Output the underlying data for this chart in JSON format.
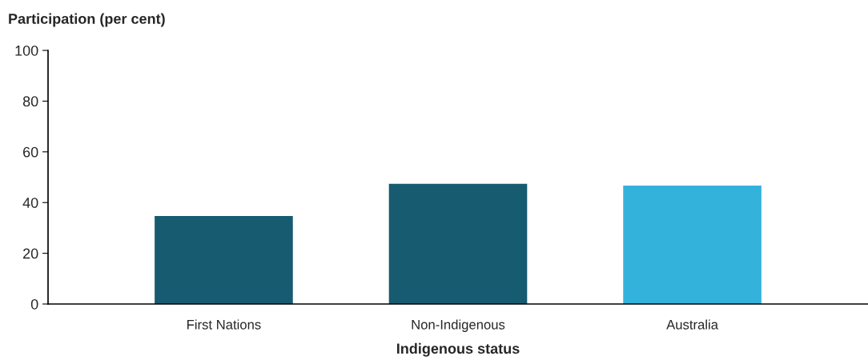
{
  "chart_data": {
    "type": "bar",
    "ylabel": "Participation (per cent)",
    "xlabel": "Indigenous status",
    "categories": [
      "First Nations",
      "Non-Indigenous",
      "Australia"
    ],
    "values": [
      34.7,
      47.4,
      46.7
    ],
    "colors": [
      "#175b70",
      "#175b70",
      "#33b2dc"
    ],
    "ylim": [
      0,
      100
    ],
    "yticks": [
      0,
      20,
      40,
      60,
      80,
      100
    ],
    "grid": false,
    "legend": false
  }
}
